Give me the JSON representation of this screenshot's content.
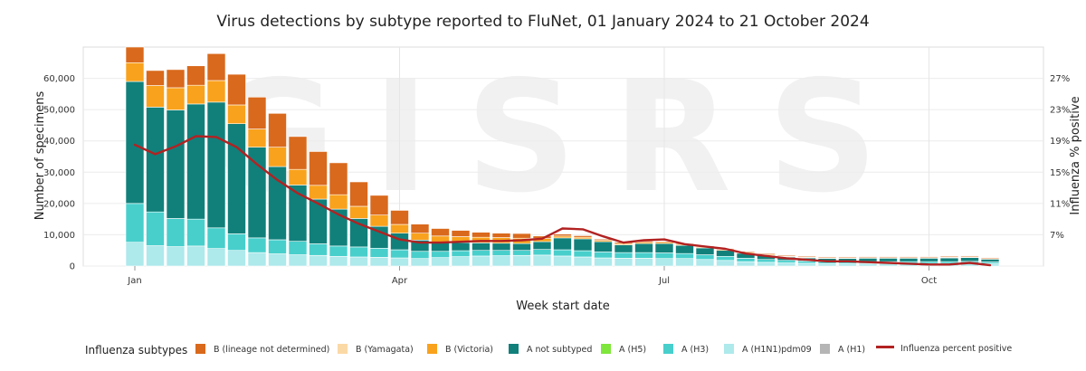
{
  "title": "Virus detections by subtype reported to FluNet, 01 January 2024 to 21 October 2024",
  "watermark": "GISRS",
  "chart_data": {
    "type": "bar",
    "stacked": true,
    "xlabel": "Week start date",
    "ylabel": "Number of specimens",
    "y2label": "Influenza % positive",
    "ylim": [
      0,
      70000
    ],
    "y2lim": [
      3,
      31
    ],
    "yticks": [
      "0",
      "10,000",
      "20,000",
      "30,000",
      "40,000",
      "50,000",
      "60,000"
    ],
    "y2ticks": [
      "7%",
      "11%",
      "15%",
      "19%",
      "23%",
      "27%"
    ],
    "xticks": [
      "Jan",
      "Apr",
      "Jul",
      "Oct"
    ],
    "xtick_weeks": [
      0,
      13,
      26,
      39
    ],
    "grid": true,
    "legend_title": "Influenza subtypes",
    "series": [
      {
        "name": "A (H1)",
        "color": "#b5b5b5",
        "values": [
          0,
          0,
          0,
          0,
          0,
          0,
          0,
          0,
          0,
          0,
          0,
          0,
          0,
          0,
          0,
          0,
          0,
          0,
          0,
          0,
          0,
          0,
          0,
          0,
          0,
          0,
          0,
          0,
          0,
          0,
          0,
          0,
          0,
          0,
          0,
          0,
          0,
          0,
          0,
          0,
          0,
          0,
          0
        ]
      },
      {
        "name": "A (H1N1)pdm09",
        "color": "#aee9ec",
        "values": [
          7600,
          6500,
          6200,
          6400,
          5600,
          5000,
          4300,
          3900,
          3600,
          3400,
          3100,
          2900,
          2800,
          2600,
          2400,
          2700,
          3000,
          3200,
          3300,
          3400,
          3500,
          3200,
          2900,
          2600,
          2500,
          2500,
          2400,
          2400,
          2100,
          1800,
          1400,
          1200,
          1000,
          900,
          800,
          800,
          800,
          800,
          800,
          800,
          800,
          900,
          800
        ]
      },
      {
        "name": "A (H3)",
        "color": "#48cfcc",
        "values": [
          12400,
          10800,
          9000,
          8600,
          6600,
          5300,
          4700,
          4500,
          4300,
          3700,
          3300,
          3200,
          2900,
          2600,
          2300,
          2000,
          1900,
          1800,
          1700,
          1600,
          1800,
          2000,
          2000,
          1900,
          1800,
          1800,
          1800,
          1600,
          1500,
          1300,
          1100,
          900,
          800,
          700,
          600,
          600,
          600,
          600,
          600,
          600,
          600,
          600,
          500
        ]
      },
      {
        "name": "A (H5)",
        "color": "#7fe63c",
        "values": [
          0,
          0,
          0,
          0,
          0,
          0,
          0,
          0,
          0,
          0,
          0,
          0,
          0,
          0,
          0,
          0,
          0,
          0,
          0,
          0,
          0,
          0,
          0,
          0,
          0,
          0,
          0,
          0,
          0,
          0,
          0,
          0,
          0,
          0,
          0,
          0,
          0,
          0,
          0,
          0,
          0,
          0,
          0
        ]
      },
      {
        "name": "A not subtyped",
        "color": "#11807b",
        "values": [
          39000,
          33500,
          34700,
          36800,
          40200,
          35200,
          29000,
          23400,
          18000,
          14300,
          11800,
          9100,
          7000,
          5300,
          3600,
          2900,
          2600,
          2400,
          2300,
          2200,
          2500,
          3800,
          3800,
          3300,
          2500,
          2900,
          3000,
          2600,
          2200,
          1900,
          1600,
          1300,
          1100,
          1000,
          1000,
          1000,
          1100,
          1100,
          1100,
          1100,
          1200,
          1200,
          900
        ]
      },
      {
        "name": "B (Victoria)",
        "color": "#f9a21d",
        "values": [
          6000,
          6900,
          7100,
          6000,
          6900,
          6000,
          5800,
          6200,
          5000,
          4400,
          4600,
          3900,
          3600,
          2800,
          2200,
          2000,
          1900,
          1800,
          1800,
          1700,
          1000,
          600,
          500,
          400,
          400,
          400,
          400,
          300,
          300,
          300,
          300,
          300,
          200,
          200,
          200,
          200,
          200,
          200,
          200,
          200,
          200,
          200,
          200
        ]
      },
      {
        "name": "B (Yamagata)",
        "color": "#fbd9a6",
        "values": [
          0,
          0,
          0,
          0,
          0,
          0,
          0,
          0,
          0,
          0,
          0,
          0,
          0,
          0,
          0,
          0,
          0,
          0,
          0,
          0,
          0,
          0,
          0,
          0,
          0,
          0,
          0,
          0,
          0,
          0,
          0,
          0,
          0,
          0,
          0,
          0,
          0,
          0,
          0,
          0,
          0,
          0,
          0
        ]
      },
      {
        "name": "B (lineage not determined)",
        "color": "#d9691c",
        "values": [
          5000,
          4800,
          5800,
          6200,
          8600,
          9800,
          10200,
          10800,
          10500,
          10800,
          10200,
          7800,
          6300,
          4500,
          2900,
          2400,
          2000,
          1600,
          1400,
          1500,
          800,
          600,
          500,
          400,
          400,
          400,
          300,
          300,
          300,
          300,
          300,
          300,
          300,
          300,
          300,
          300,
          300,
          300,
          300,
          300,
          300,
          300,
          300
        ]
      }
    ],
    "line": {
      "name": "Influenza percent positive",
      "color": "#b22222",
      "values": [
        18.5,
        17.3,
        18.3,
        19.6,
        19.5,
        18.2,
        16.0,
        14.0,
        12.3,
        11.0,
        9.6,
        8.4,
        7.4,
        6.4,
        6.0,
        6.0,
        6.1,
        6.2,
        6.2,
        6.3,
        6.5,
        7.8,
        7.7,
        6.8,
        6.0,
        6.3,
        6.4,
        5.8,
        5.5,
        5.2,
        4.6,
        4.3,
        4.0,
        3.8,
        3.6,
        3.6,
        3.5,
        3.4,
        3.3,
        3.2,
        3.2,
        3.4,
        3.1
      ]
    }
  }
}
